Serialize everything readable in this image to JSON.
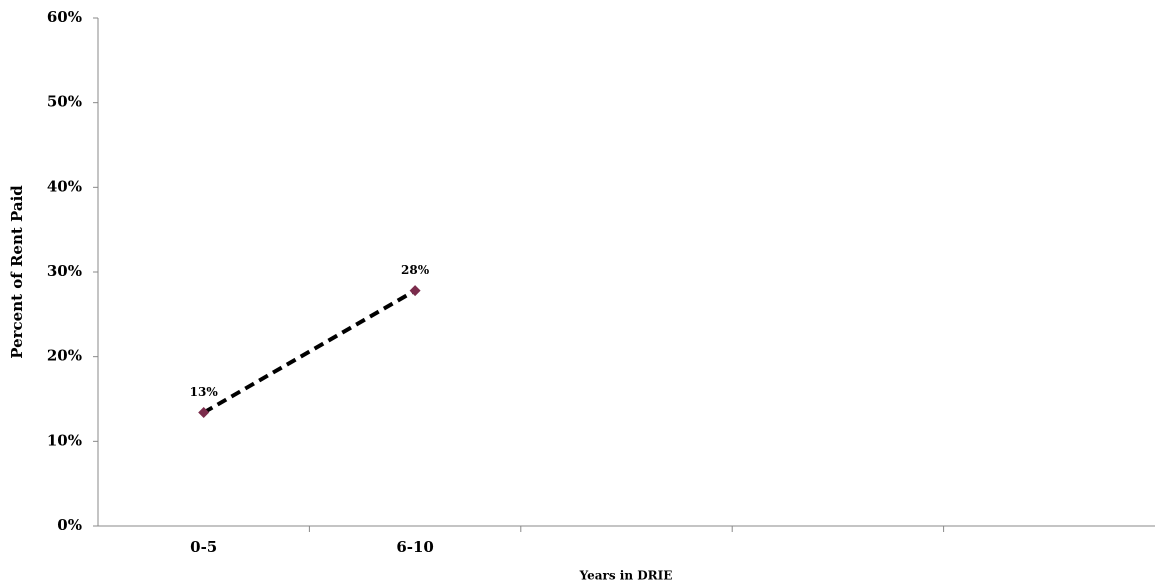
{
  "chart_data": {
    "type": "line",
    "x_label": "Years in DRIE",
    "y_label": "Percent of Rent Paid",
    "categories": [
      "0-5",
      "6-10",
      null,
      null,
      null
    ],
    "values": [
      13.4,
      27.8,
      null,
      null,
      null
    ],
    "value_labels": [
      "13%",
      "28%",
      null,
      null,
      null
    ],
    "line_color": "#000000",
    "marker_color": "#7b2c4c",
    "ylim": [
      0,
      60
    ],
    "yticks": [
      {
        "value": 0,
        "label": "0%"
      },
      {
        "value": 10,
        "label": "10%"
      },
      {
        "value": 20,
        "label": "20%"
      },
      {
        "value": 30,
        "label": "30%"
      },
      {
        "value": 40,
        "label": "40%"
      },
      {
        "value": 50,
        "label": "50%"
      },
      {
        "value": 60,
        "label": "60%"
      }
    ],
    "grid": false
  }
}
